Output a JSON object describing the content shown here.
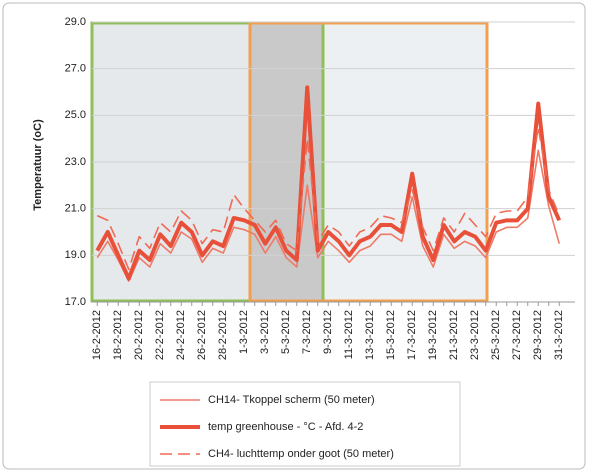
{
  "chart_data": {
    "type": "line",
    "y_label": "Temperatuur (oC)",
    "categories": [
      "16-2-2012",
      null,
      "18-2-2012",
      null,
      "20-2-2012",
      null,
      "22-2-2012",
      null,
      "24-2-2012",
      null,
      "26-2-2012",
      null,
      "28-2-2012",
      null,
      "1-3-2012",
      null,
      "3-3-2012",
      null,
      "5-3-2012",
      null,
      "7-3-2012",
      null,
      "9-3-2012",
      null,
      "11-3-2012",
      null,
      "13-3-2012",
      null,
      "15-3-2012",
      null,
      "17-3-2012",
      null,
      "19-3-2012",
      null,
      "21-3-2012",
      null,
      "23-3-2012",
      null,
      "25-3-2012",
      null,
      "27-3-2012",
      null,
      "29-3-2012",
      null,
      "31-3-2012"
    ],
    "series": [
      {
        "name": "CH14- Tkoppel scherm (50 meter)",
        "color": "#ef7a68",
        "style": "thin",
        "values": [
          18.9,
          19.6,
          18.8,
          17.9,
          18.9,
          18.5,
          19.5,
          19.1,
          20.0,
          19.7,
          18.7,
          19.3,
          19.1,
          20.2,
          20.1,
          19.9,
          19.1,
          19.8,
          18.9,
          18.5,
          22.0,
          18.9,
          19.6,
          19.2,
          18.7,
          19.2,
          19.4,
          19.9,
          19.9,
          19.6,
          21.5,
          19.4,
          18.5,
          19.9,
          19.3,
          19.6,
          19.4,
          18.9,
          20.0,
          20.2,
          20.2,
          20.6,
          23.5,
          21.1,
          19.5
        ]
      },
      {
        "name": "temp greenhouse - °C -  Afd. 4-2",
        "color": "#e8503a",
        "style": "thick",
        "values": [
          19.2,
          20.0,
          19.0,
          18.0,
          19.2,
          18.8,
          19.9,
          19.4,
          20.4,
          20.0,
          19.0,
          19.6,
          19.4,
          20.6,
          20.5,
          20.3,
          19.5,
          20.2,
          19.2,
          18.8,
          26.2,
          19.2,
          20.0,
          19.6,
          19.0,
          19.6,
          19.8,
          20.3,
          20.3,
          20.0,
          22.5,
          19.8,
          18.8,
          20.3,
          19.6,
          20.0,
          19.8,
          19.2,
          20.4,
          20.5,
          20.5,
          21.0,
          25.5,
          21.5,
          20.5
        ]
      },
      {
        "name": "CH4- luchttemp onder goot (50 meter)",
        "color": "#ef6a55",
        "style": "dashed",
        "values": [
          20.7,
          20.5,
          19.5,
          18.4,
          19.8,
          19.3,
          20.4,
          20.0,
          20.9,
          20.5,
          19.5,
          20.1,
          20.0,
          21.6,
          21.0,
          20.5,
          20.0,
          20.5,
          19.5,
          19.2,
          24.0,
          19.6,
          20.3,
          20.0,
          19.4,
          20.0,
          20.2,
          20.7,
          20.6,
          20.4,
          21.8,
          20.2,
          19.2,
          20.6,
          20.0,
          20.8,
          20.3,
          19.8,
          20.8,
          20.9,
          20.9,
          21.5,
          24.5,
          21.8,
          20.7
        ]
      }
    ],
    "ylim": [
      17.0,
      29.0
    ],
    "yticks": [
      {
        "value": 17,
        "label": "17.0"
      },
      {
        "value": 19,
        "label": "19.0"
      },
      {
        "value": 21,
        "label": "21.0"
      },
      {
        "value": 23,
        "label": "23.0"
      },
      {
        "value": 25,
        "label": "25.0"
      },
      {
        "value": 27,
        "label": "27.0"
      },
      {
        "value": 29,
        "label": "29.0"
      }
    ],
    "grid": true
  }
}
